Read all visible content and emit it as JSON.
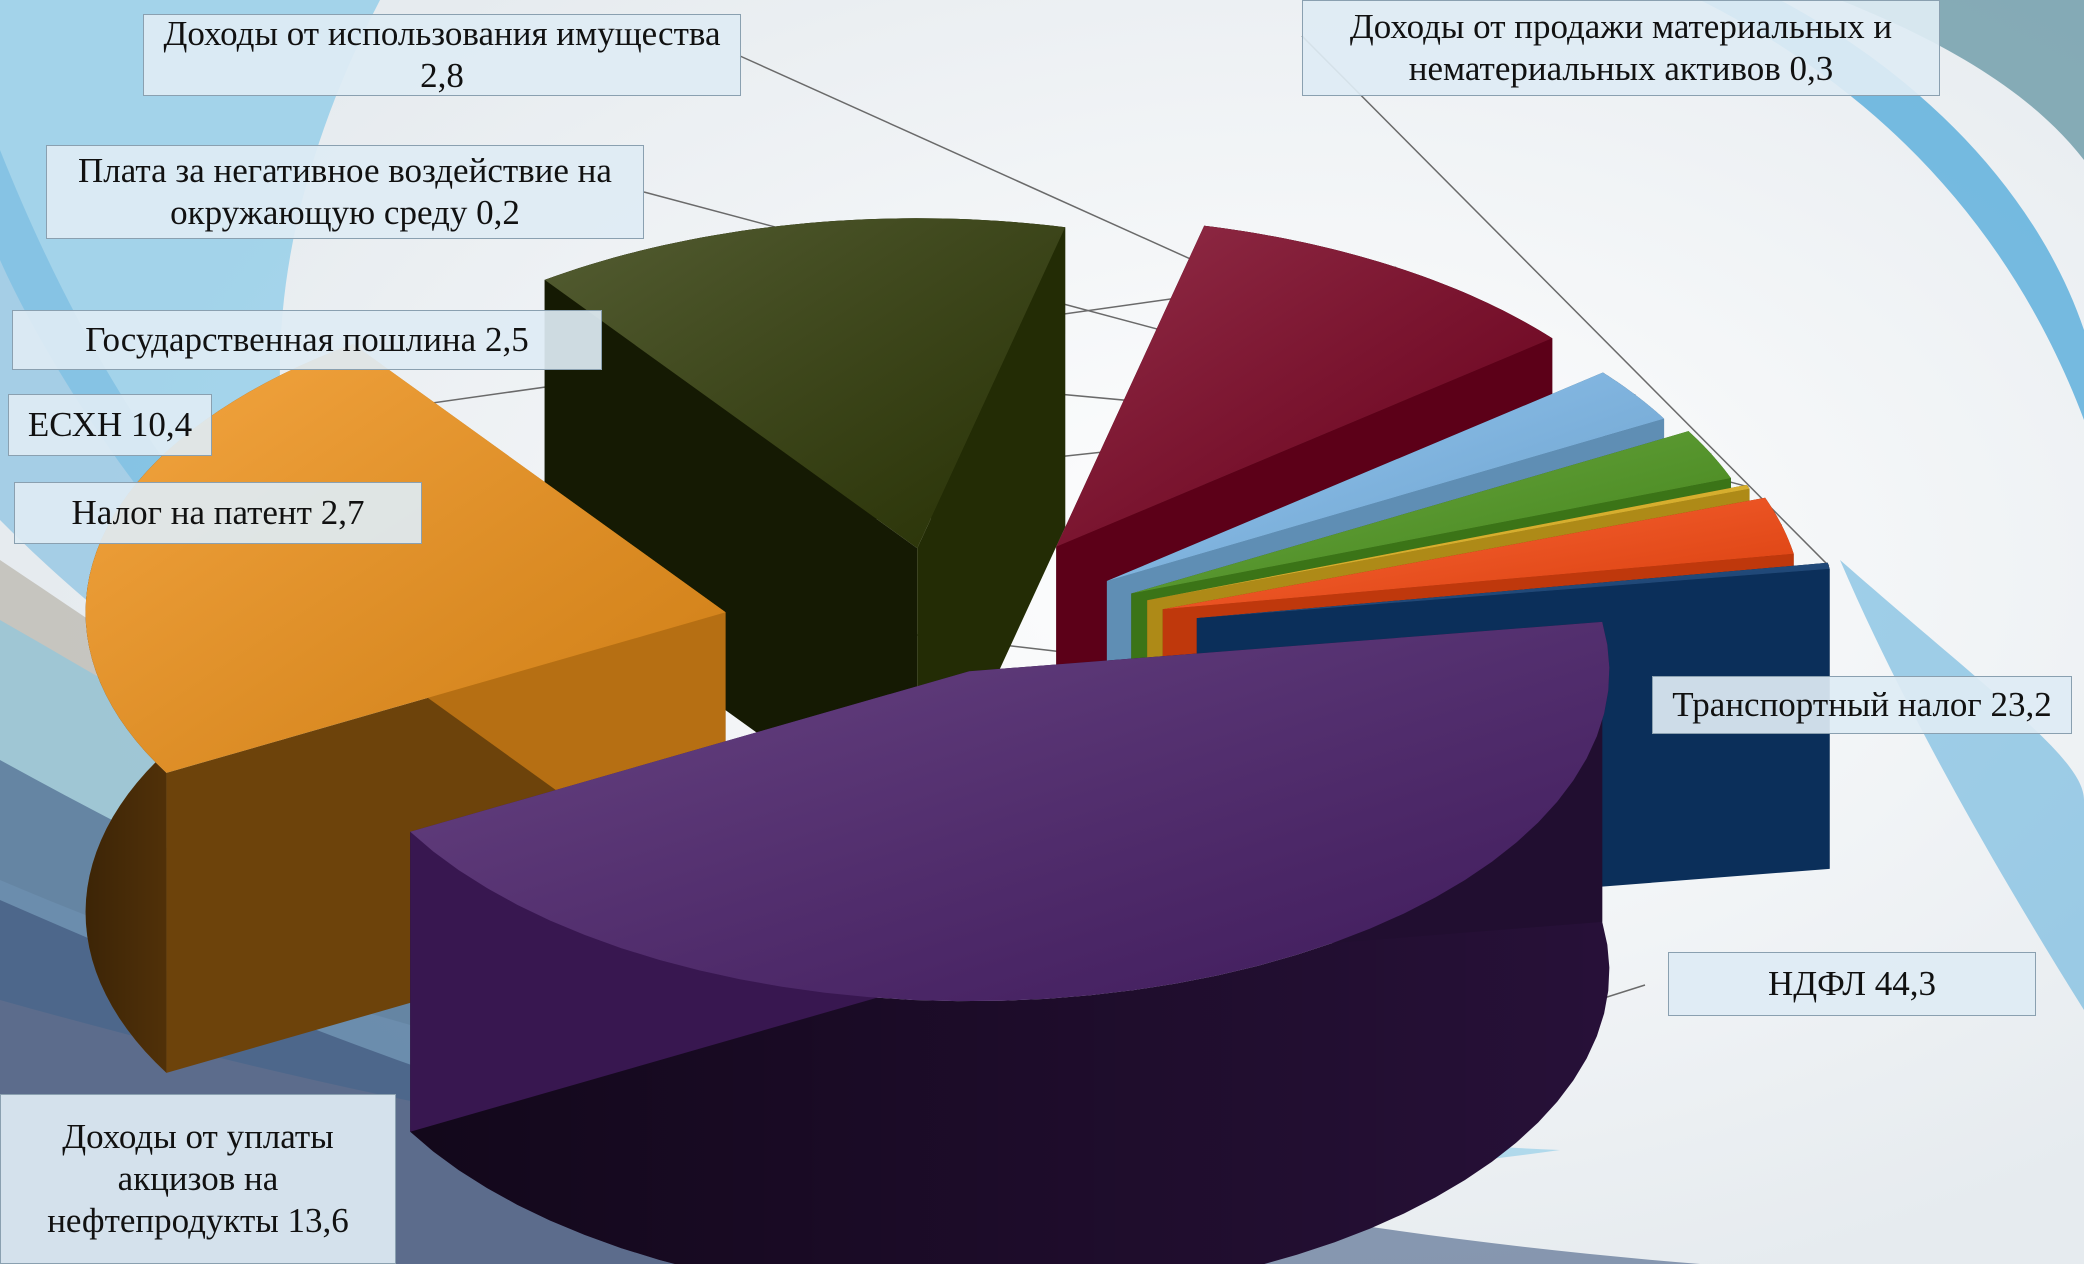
{
  "chart_data": {
    "type": "pie",
    "title": "",
    "slices": [
      {
        "label": "НДФЛ",
        "value": 44.3,
        "color": "#4a1f6b",
        "text": "НДФЛ 44,3"
      },
      {
        "label": "Транспортный налог",
        "value": 23.2,
        "color": "#f39419",
        "text": "Транспортный налог 23,2"
      },
      {
        "label": "Доходы от уплаты акцизов на нефтепродукты",
        "value": 13.6,
        "color": "#2f3a06",
        "text": "Доходы от уплаты акцизов на нефтепродукты 13,6"
      },
      {
        "label": "ЕСХН",
        "value": 10.4,
        "color": "#7a0020",
        "text": "ЕСХН 10,4"
      },
      {
        "label": "Налог на патент",
        "value": 2.7,
        "color": "#7fbdf0",
        "text": "Налог на патент 2,7"
      },
      {
        "label": "Государственная пошлина",
        "value": 2.5,
        "color": "#4f9a1e",
        "text": "Государственная пошлина 2,5"
      },
      {
        "label": "Плата за негативное воздействие на окружающую среду",
        "value": 0.2,
        "color": "#e8b81e",
        "text": "Плата за негативное воздействие на окружающую среду 0,2"
      },
      {
        "label": "Доходы от использования имущества",
        "value": 2.8,
        "color": "#ff4a10",
        "text": "Доходы от использования имущества 2,8"
      },
      {
        "label": "Доходы от продажи материальных и нематериальных активов",
        "value": 0.3,
        "color": "#0f3f78",
        "text": "Доходы от продажи материальных и нематериальных активов 0,3"
      }
    ]
  }
}
